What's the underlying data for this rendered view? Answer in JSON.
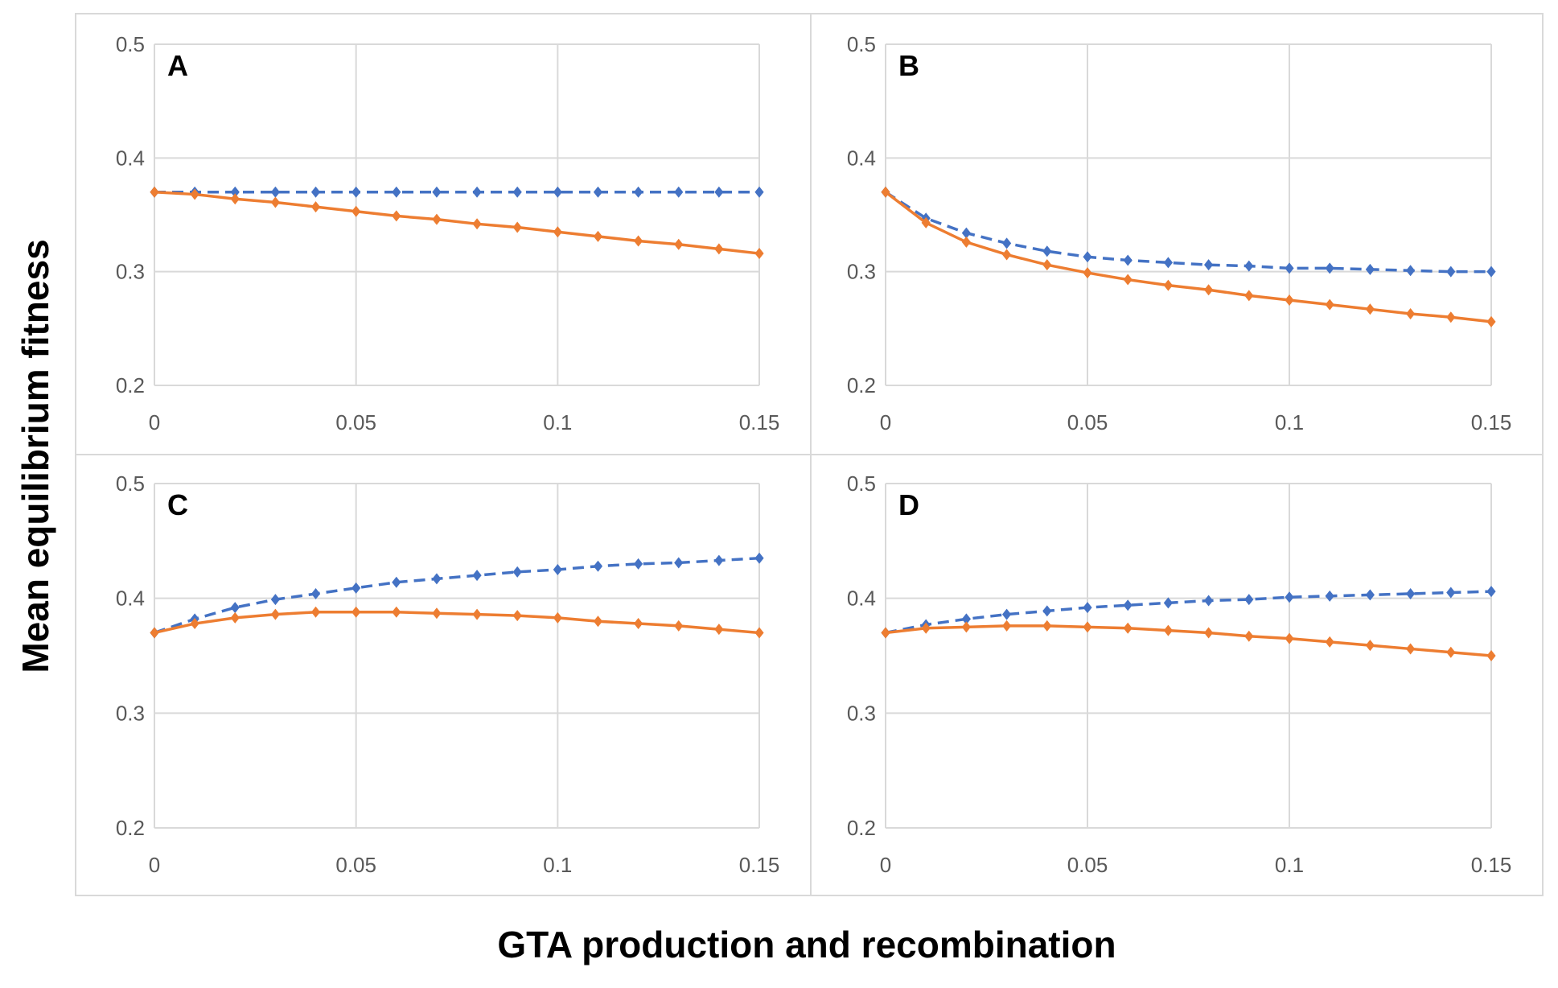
{
  "figure": {
    "ylabel": "Mean equilibrium fitness",
    "xlabel": "GTA production and recombination"
  },
  "colors": {
    "blue": "#4472C4",
    "orange": "#ED7D31",
    "grid": "#D9D9D9"
  },
  "chart_data": [
    {
      "type": "line",
      "panel": "A",
      "x": [
        0,
        0.01,
        0.02,
        0.03,
        0.04,
        0.05,
        0.06,
        0.07,
        0.08,
        0.09,
        0.1,
        0.11,
        0.12,
        0.13,
        0.14,
        0.15
      ],
      "xticks": [
        "0",
        "0.05",
        "0.1",
        "0.15"
      ],
      "yticks": [
        "0.2",
        "0.3",
        "0.4",
        "0.5"
      ],
      "xlim": [
        0,
        0.15
      ],
      "ylim": [
        0.2,
        0.5
      ],
      "grid": true,
      "series": [
        {
          "name": "dashed-blue",
          "style": "dashed",
          "values": [
            0.37,
            0.37,
            0.37,
            0.37,
            0.37,
            0.37,
            0.37,
            0.37,
            0.37,
            0.37,
            0.37,
            0.37,
            0.37,
            0.37,
            0.37,
            0.37
          ]
        },
        {
          "name": "solid-orange",
          "style": "solid",
          "values": [
            0.37,
            0.368,
            0.364,
            0.361,
            0.357,
            0.353,
            0.349,
            0.346,
            0.342,
            0.339,
            0.335,
            0.331,
            0.327,
            0.324,
            0.32,
            0.316
          ]
        }
      ]
    },
    {
      "type": "line",
      "panel": "B",
      "x": [
        0,
        0.01,
        0.02,
        0.03,
        0.04,
        0.05,
        0.06,
        0.07,
        0.08,
        0.09,
        0.1,
        0.11,
        0.12,
        0.13,
        0.14,
        0.15
      ],
      "xticks": [
        "0",
        "0.05",
        "0.1",
        "0.15"
      ],
      "yticks": [
        "0.2",
        "0.3",
        "0.4",
        "0.5"
      ],
      "xlim": [
        0,
        0.15
      ],
      "ylim": [
        0.2,
        0.5
      ],
      "grid": true,
      "series": [
        {
          "name": "dashed-blue",
          "style": "dashed",
          "values": [
            0.37,
            0.347,
            0.334,
            0.325,
            0.318,
            0.313,
            0.31,
            0.308,
            0.306,
            0.305,
            0.303,
            0.303,
            0.302,
            0.301,
            0.3,
            0.3
          ]
        },
        {
          "name": "solid-orange",
          "style": "solid",
          "values": [
            0.37,
            0.343,
            0.326,
            0.315,
            0.306,
            0.299,
            0.293,
            0.288,
            0.284,
            0.279,
            0.275,
            0.271,
            0.267,
            0.263,
            0.26,
            0.256
          ]
        }
      ]
    },
    {
      "type": "line",
      "panel": "C",
      "x": [
        0,
        0.01,
        0.02,
        0.03,
        0.04,
        0.05,
        0.06,
        0.07,
        0.08,
        0.09,
        0.1,
        0.11,
        0.12,
        0.13,
        0.14,
        0.15
      ],
      "xticks": [
        "0",
        "0.05",
        "0.1",
        "0.15"
      ],
      "yticks": [
        "0.2",
        "0.3",
        "0.4",
        "0.5"
      ],
      "xlim": [
        0,
        0.15
      ],
      "ylim": [
        0.2,
        0.5
      ],
      "grid": true,
      "series": [
        {
          "name": "dashed-blue",
          "style": "dashed",
          "values": [
            0.37,
            0.382,
            0.392,
            0.399,
            0.404,
            0.409,
            0.414,
            0.417,
            0.42,
            0.423,
            0.425,
            0.428,
            0.43,
            0.431,
            0.433,
            0.435
          ]
        },
        {
          "name": "solid-orange",
          "style": "solid",
          "values": [
            0.37,
            0.378,
            0.383,
            0.386,
            0.388,
            0.388,
            0.388,
            0.387,
            0.386,
            0.385,
            0.383,
            0.38,
            0.378,
            0.376,
            0.373,
            0.37
          ]
        }
      ]
    },
    {
      "type": "line",
      "panel": "D",
      "x": [
        0,
        0.01,
        0.02,
        0.03,
        0.04,
        0.05,
        0.06,
        0.07,
        0.08,
        0.09,
        0.1,
        0.11,
        0.12,
        0.13,
        0.14,
        0.15
      ],
      "xticks": [
        "0",
        "0.05",
        "0.1",
        "0.15"
      ],
      "yticks": [
        "0.2",
        "0.3",
        "0.4",
        "0.5"
      ],
      "xlim": [
        0,
        0.15
      ],
      "ylim": [
        0.2,
        0.5
      ],
      "grid": true,
      "series": [
        {
          "name": "dashed-blue",
          "style": "dashed",
          "values": [
            0.37,
            0.377,
            0.382,
            0.386,
            0.389,
            0.392,
            0.394,
            0.396,
            0.398,
            0.399,
            0.401,
            0.402,
            0.403,
            0.404,
            0.405,
            0.406
          ]
        },
        {
          "name": "solid-orange",
          "style": "solid",
          "values": [
            0.37,
            0.374,
            0.375,
            0.376,
            0.376,
            0.375,
            0.374,
            0.372,
            0.37,
            0.367,
            0.365,
            0.362,
            0.359,
            0.356,
            0.353,
            0.35
          ]
        }
      ]
    }
  ]
}
